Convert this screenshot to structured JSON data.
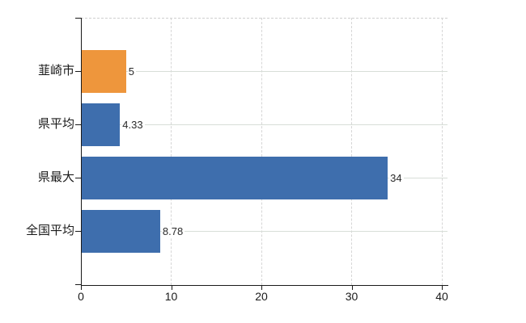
{
  "chart_data": {
    "type": "bar",
    "orientation": "horizontal",
    "title": "",
    "xlabel": "",
    "ylabel": "",
    "categories": [
      "韮崎市",
      "県平均",
      "県最大",
      "全国平均"
    ],
    "values": [
      5,
      4.33,
      34,
      8.78
    ],
    "value_labels": [
      "5",
      "4.33",
      "34",
      "8.78"
    ],
    "bar_colors": [
      "#ee963c",
      "#3e6ead",
      "#3e6ead",
      "#3e6ead"
    ],
    "x_ticks": [
      {
        "value": 0,
        "label": "0"
      },
      {
        "value": 10,
        "label": "10"
      },
      {
        "value": 20,
        "label": "20"
      },
      {
        "value": 30,
        "label": "30"
      },
      {
        "value": 40,
        "label": "40"
      }
    ],
    "xlim": [
      0,
      40.6
    ],
    "grid": "on",
    "legend": "none",
    "colors": {
      "highlight_bar": "#ee963c",
      "default_bar": "#3e6ead",
      "grid_horizontal": "#d8ded8",
      "grid_vertical": "#d6d6d6",
      "axis": "#1a1a1a",
      "category_text": "#1a1a1a",
      "value_text": "#2b2b2b",
      "background": "#ffffff"
    }
  }
}
